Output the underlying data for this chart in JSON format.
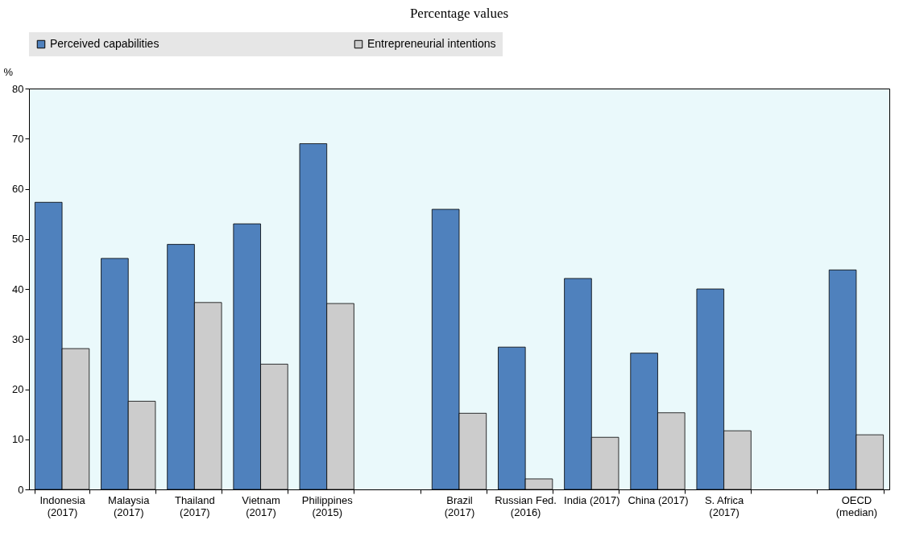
{
  "chart_data": {
    "type": "bar",
    "title": "Percentage values",
    "ylabel": "%",
    "categories": [
      "Indonesia (2017)",
      "Malaysia (2017)",
      "Thailand (2017)",
      "Vietnam (2017)",
      "Philippines (2015)",
      null,
      "Brazil (2017)",
      "Russian Fed. (2016)",
      "India (2017)",
      "China (2017)",
      "S. Africa (2017)",
      null,
      "OECD (median)"
    ],
    "series": [
      {
        "name": "Perceived capabilities",
        "color": "#4f81bd",
        "values": [
          57.3,
          46.1,
          48.9,
          53.0,
          69.0,
          null,
          55.9,
          28.4,
          42.1,
          27.2,
          40.0,
          null,
          43.8
        ]
      },
      {
        "name": "Entrepreneurial intentions",
        "color": "#cccccc",
        "values": [
          28.1,
          17.6,
          37.3,
          25.0,
          37.1,
          null,
          15.2,
          2.1,
          10.4,
          15.3,
          11.7,
          null,
          10.9
        ]
      }
    ],
    "ylim": [
      0,
      80
    ],
    "yticks": [
      0,
      10,
      20,
      30,
      40,
      50,
      60,
      70,
      80
    ],
    "legend": "top"
  }
}
